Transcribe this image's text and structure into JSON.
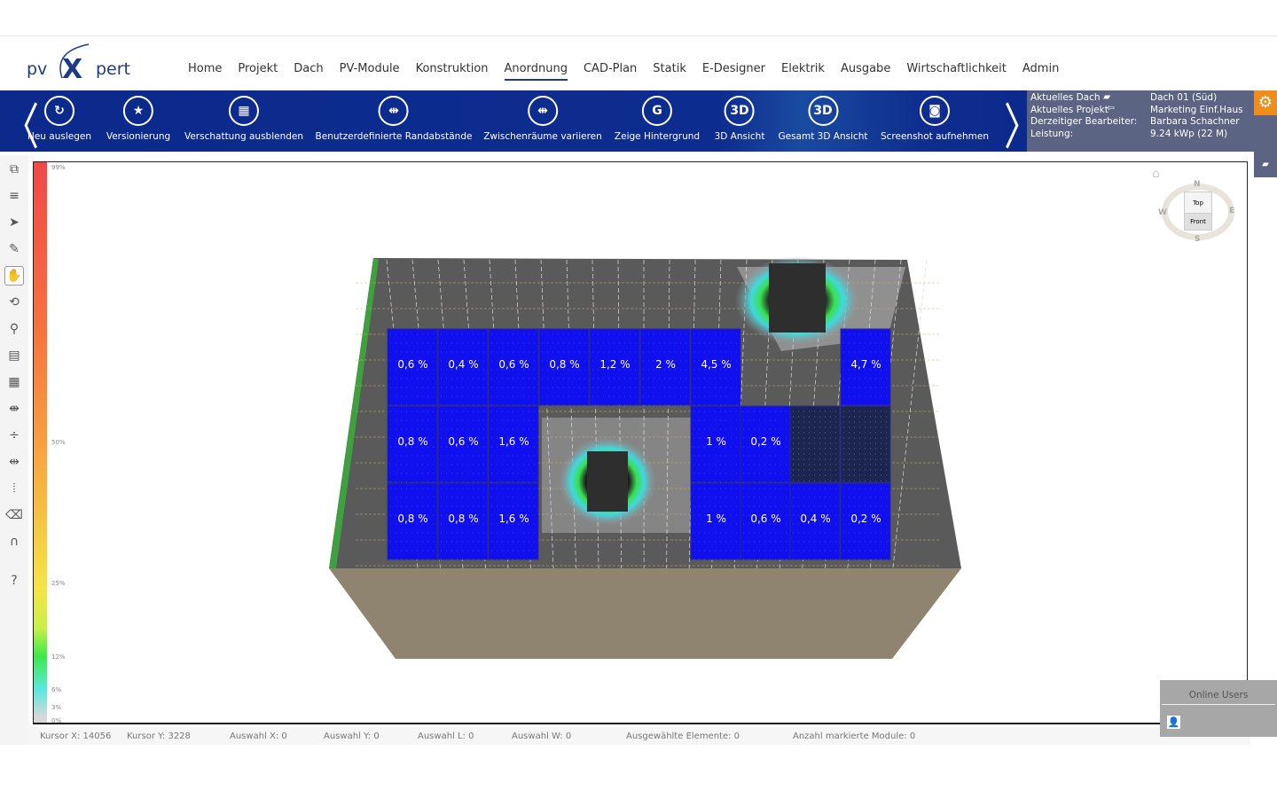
{
  "logo": {
    "text": "pvXpert"
  },
  "nav": {
    "items": [
      "Home",
      "Projekt",
      "Dach",
      "PV-Module",
      "Konstruktion",
      "Anordnung",
      "CAD-Plan",
      "Statik",
      "E-Designer",
      "Elektrik",
      "Ausgabe",
      "Wirtschaftlichkeit",
      "Admin"
    ],
    "active": "Anordnung"
  },
  "toolbar": {
    "items": [
      {
        "label": "Neu auslegen",
        "icon": "refresh-icon",
        "glyph": "↻"
      },
      {
        "label": "Versionierung",
        "icon": "document-star-icon",
        "glyph": "★"
      },
      {
        "label": "Verschattung ausblenden",
        "icon": "shade-icon",
        "glyph": "▦"
      },
      {
        "label": "Benutzerdefinierte Randabstände",
        "icon": "margin-icon",
        "glyph": "⇹"
      },
      {
        "label": "Zwischenräume variieren",
        "icon": "spacing-icon",
        "glyph": "⇹"
      },
      {
        "label": "Zeige Hintergrund",
        "icon": "map-pin-icon",
        "glyph": "G"
      },
      {
        "label": "3D Ansicht",
        "icon": "3d-icon",
        "glyph": "3D"
      },
      {
        "label": "Gesamt 3D Ansicht",
        "icon": "3d-total-icon",
        "glyph": "3D"
      },
      {
        "label": "Screenshot aufnehmen",
        "icon": "camera-icon",
        "glyph": "◙"
      }
    ]
  },
  "info": {
    "labels": [
      "Aktuelles Dach",
      "Aktuelles Projekt",
      "Derzeitiger Bearbeiter:",
      "Leistung:"
    ],
    "values": [
      "Dach 01 (Süd)",
      "Marketing Einf.Haus",
      "Barbara Schachner",
      "9.24 kWp (22 M)"
    ]
  },
  "accent": "#f08c1a",
  "scale": {
    "labels": [
      "99%",
      "50%",
      "25%",
      "12%",
      "6%",
      "3%",
      "0%"
    ]
  },
  "compass": {
    "n": "N",
    "s": "S",
    "e": "E",
    "w": "W",
    "top": "Top",
    "front": "Front"
  },
  "modules": {
    "rows": [
      [
        "0,6 %",
        "0,4 %",
        "0,6 %",
        "0,8 %",
        "1,2 %",
        "2 %",
        "4,5 %",
        null,
        null,
        "4,7 %"
      ],
      [
        "0,8 %",
        "0,6 %",
        "1,6 %",
        null,
        null,
        null,
        "1 %",
        "0,2 %",
        "",
        ""
      ],
      [
        "0,8 %",
        "0,8 %",
        "1,6 %",
        null,
        null,
        null,
        "1 %",
        "0,6 %",
        "0,4 %",
        "0,2 %"
      ]
    ]
  },
  "status": {
    "items": [
      "Kursor X:  14056",
      "Kursor Y:  3228",
      "Auswahl X:  0",
      "Auswahl Y:  0",
      "Auswahl L:  0",
      "Auswahl W:  0",
      "Ausgewählte Elemente:  0",
      "Anzahl markierte Module:  0"
    ]
  },
  "online": {
    "title": "Online Users"
  }
}
